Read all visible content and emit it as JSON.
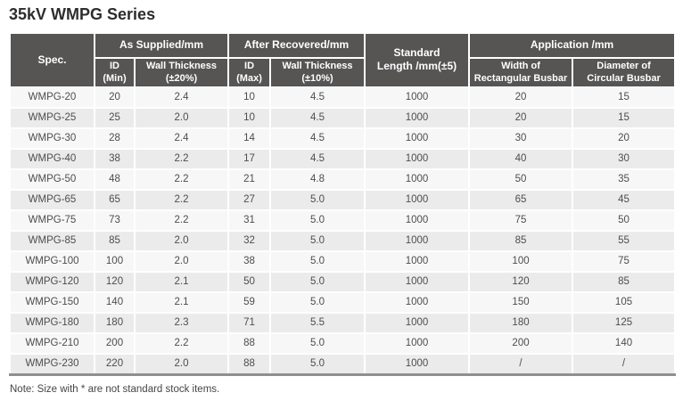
{
  "page": {
    "title": "35kV WMPG Series",
    "note": "Note: Size with * are not standard stock items."
  },
  "colors": {
    "header_bg": "#575454",
    "header_text": "#ffffff",
    "row_odd": "#f7f7f7",
    "row_even": "#ebebeb",
    "cell_text": "#4d4d4d",
    "title_text": "#2e2d2d",
    "bottom_border": "#8f8f8f"
  },
  "table": {
    "header": {
      "spec": "Spec.",
      "group_as_supplied": "As Supplied/mm",
      "group_after_recovered": "After Recovered/mm",
      "standard_length": "Standard\nLength /mm(±5)",
      "group_application": "Application /mm",
      "id_min": "ID\n(Min)",
      "wall_thickness_20": "Wall Thickness\n(±20%)",
      "id_max": "ID\n(Max)",
      "wall_thickness_10": "Wall Thickness\n(±10%)",
      "width_rect_busbar": "Width of\nRectangular Busbar",
      "dia_circ_busbar": "Diameter of\nCircular Busbar"
    },
    "rows": [
      [
        "WMPG-20",
        "20",
        "2.4",
        "10",
        "4.5",
        "1000",
        "20",
        "15"
      ],
      [
        "WMPG-25",
        "25",
        "2.0",
        "10",
        "4.5",
        "1000",
        "20",
        "15"
      ],
      [
        "WMPG-30",
        "28",
        "2.4",
        "14",
        "4.5",
        "1000",
        "30",
        "20"
      ],
      [
        "WMPG-40",
        "38",
        "2.2",
        "17",
        "4.5",
        "1000",
        "40",
        "30"
      ],
      [
        "WMPG-50",
        "48",
        "2.2",
        "21",
        "4.8",
        "1000",
        "50",
        "35"
      ],
      [
        "WMPG-65",
        "65",
        "2.2",
        "27",
        "5.0",
        "1000",
        "65",
        "45"
      ],
      [
        "WMPG-75",
        "73",
        "2.2",
        "31",
        "5.0",
        "1000",
        "75",
        "50"
      ],
      [
        "WMPG-85",
        "85",
        "2.0",
        "32",
        "5.0",
        "1000",
        "85",
        "55"
      ],
      [
        "WMPG-100",
        "100",
        "2.0",
        "38",
        "5.0",
        "1000",
        "100",
        "75"
      ],
      [
        "WMPG-120",
        "120",
        "2.1",
        "50",
        "5.0",
        "1000",
        "120",
        "85"
      ],
      [
        "WMPG-150",
        "140",
        "2.1",
        "59",
        "5.0",
        "1000",
        "150",
        "105"
      ],
      [
        "WMPG-180",
        "180",
        "2.3",
        "71",
        "5.5",
        "1000",
        "180",
        "125"
      ],
      [
        "WMPG-210",
        "200",
        "2.2",
        "88",
        "5.0",
        "1000",
        "200",
        "140"
      ],
      [
        "WMPG-230",
        "220",
        "2.0",
        "88",
        "5.0",
        "1000",
        "/",
        "/"
      ]
    ]
  }
}
